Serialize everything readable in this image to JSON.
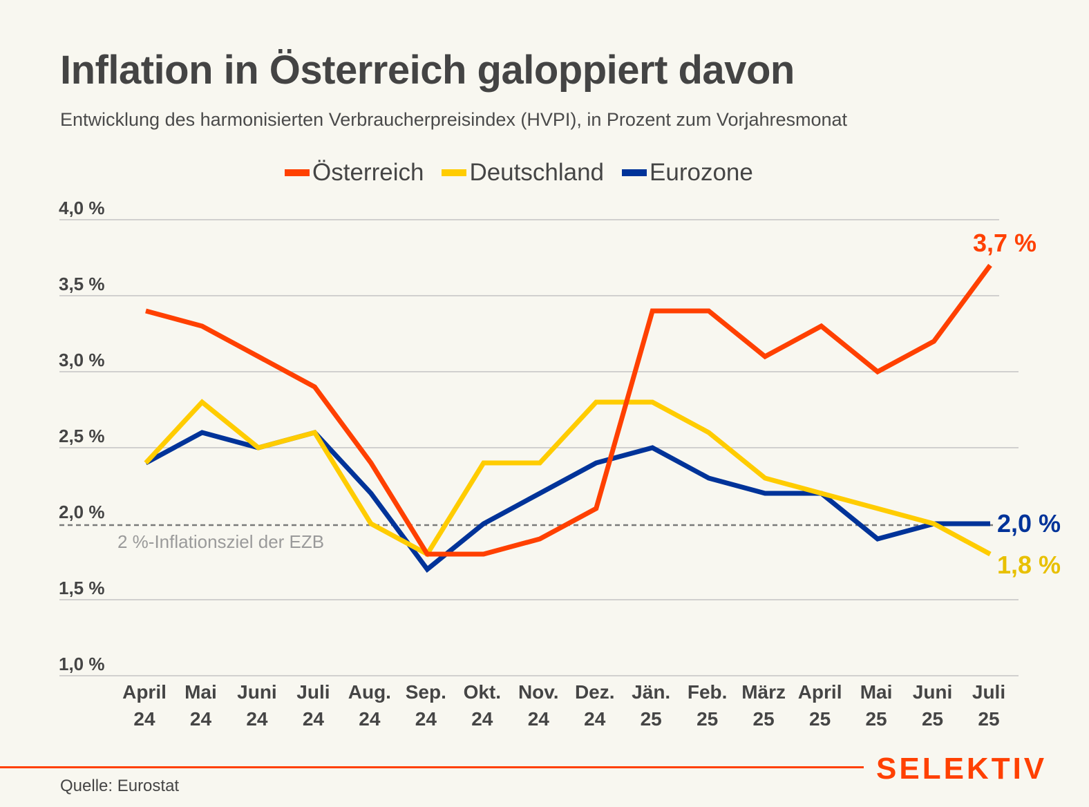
{
  "header": {
    "title": "Inflation in Österreich galoppiert davon",
    "subtitle": "Entwicklung des harmonisierten Verbraucherpreisindex (HVPI), in Prozent zum Vorjahresmonat"
  },
  "colors": {
    "background": "#f8f7f0",
    "austria": "#ff4000",
    "germany": "#ffcc00",
    "eurozone": "#003399",
    "grid": "#c4c4c4",
    "target_line": "#7a7a7a",
    "text": "#454545"
  },
  "chart_data": {
    "type": "line",
    "title": "Inflation in Österreich galoppiert davon",
    "subtitle": "Entwicklung des harmonisierten Verbraucherpreisindex (HVPI), in Prozent zum Vorjahresmonat",
    "xlabel": "",
    "ylabel": "",
    "categories": [
      [
        "April",
        "24"
      ],
      [
        "Mai",
        "24"
      ],
      [
        "Juni",
        "24"
      ],
      [
        "Juli",
        "24"
      ],
      [
        "Aug.",
        "24"
      ],
      [
        "Sep.",
        "24"
      ],
      [
        "Okt.",
        "24"
      ],
      [
        "Nov.",
        "24"
      ],
      [
        "Dez.",
        "24"
      ],
      [
        "Jän.",
        "25"
      ],
      [
        "Feb.",
        "25"
      ],
      [
        "März",
        "25"
      ],
      [
        "April",
        "25"
      ],
      [
        "Mai",
        "25"
      ],
      [
        "Juni",
        "25"
      ],
      [
        "Juli",
        "25"
      ]
    ],
    "ylim": [
      1.0,
      4.0
    ],
    "yticks": [
      1.0,
      1.5,
      2.0,
      2.5,
      3.0,
      3.5,
      4.0
    ],
    "ytick_labels": [
      "1,0 %",
      "1,5 %",
      "2,0 %",
      "2,5 %",
      "3,0 %",
      "3,5 %",
      "4,0 %"
    ],
    "grid": true,
    "legend_position": "top-center",
    "series": [
      {
        "name": "Österreich",
        "key": "austria",
        "values": [
          3.4,
          3.3,
          3.1,
          2.9,
          2.4,
          1.8,
          1.8,
          1.9,
          2.1,
          3.4,
          3.4,
          3.1,
          3.3,
          3.0,
          3.2,
          3.7
        ],
        "end_label": "3,7 %"
      },
      {
        "name": "Deutschland",
        "key": "germany",
        "values": [
          2.4,
          2.8,
          2.5,
          2.6,
          2.0,
          1.8,
          2.4,
          2.4,
          2.8,
          2.8,
          2.6,
          2.3,
          2.2,
          2.1,
          2.0,
          1.8
        ],
        "end_label": "1,8 %"
      },
      {
        "name": "Eurozone",
        "key": "eurozone",
        "values": [
          2.4,
          2.6,
          2.5,
          2.6,
          2.2,
          1.7,
          2.0,
          2.2,
          2.4,
          2.5,
          2.3,
          2.2,
          2.2,
          1.9,
          2.0,
          2.0
        ],
        "end_label": "2,0 %"
      }
    ],
    "annotations": [
      {
        "type": "hline",
        "y": 2.0,
        "style": "dashed",
        "label": "2 %-Inflationsziel der EZB"
      }
    ]
  },
  "footer": {
    "source": "Quelle: Eurostat",
    "brand": "SELEKTIV"
  }
}
